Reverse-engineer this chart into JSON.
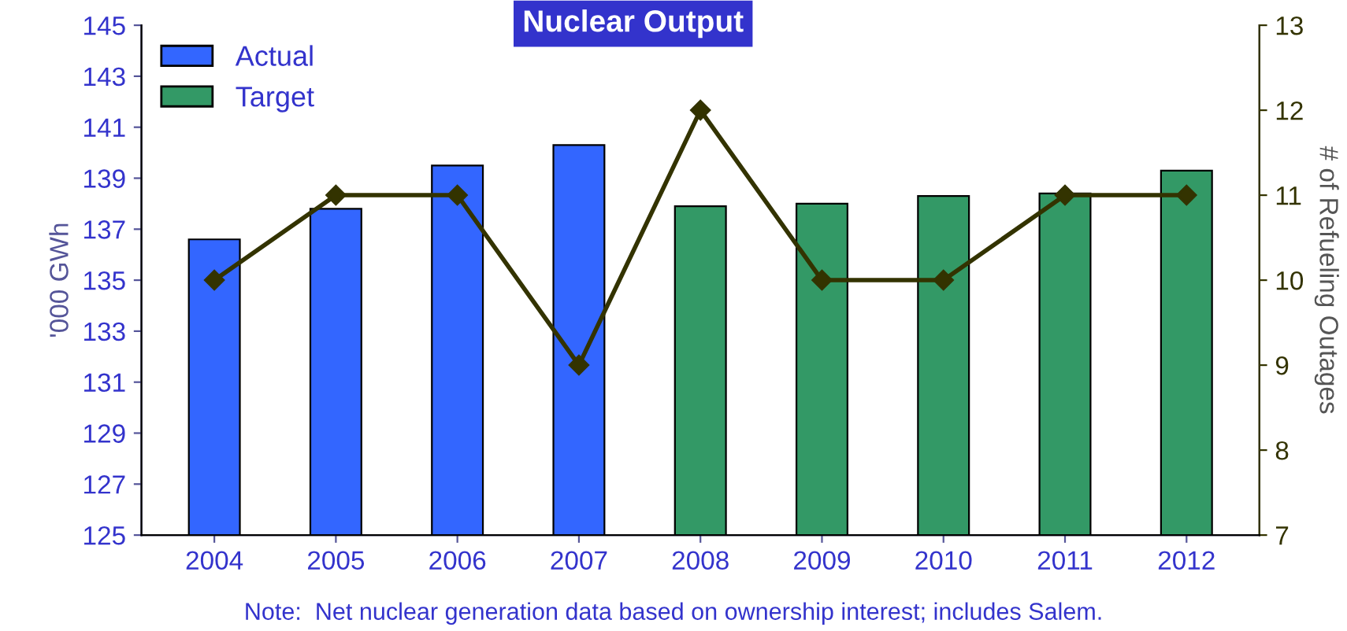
{
  "chart_data": {
    "type": "bar",
    "title": "Nuclear Output",
    "categories": [
      "2004",
      "2005",
      "2006",
      "2007",
      "2008",
      "2009",
      "2010",
      "2011",
      "2012"
    ],
    "series": [
      {
        "name": "Actual",
        "color": "#3366ff",
        "values": [
          136.6,
          137.8,
          139.5,
          140.3,
          null,
          null,
          null,
          null,
          null
        ]
      },
      {
        "name": "Target",
        "color": "#339966",
        "values": [
          null,
          null,
          null,
          null,
          137.9,
          138.0,
          138.3,
          138.4,
          139.3
        ]
      },
      {
        "type": "line",
        "axis": "y2",
        "color": "#333300",
        "marker": "diamond",
        "values": [
          10,
          11,
          11,
          9,
          12,
          10,
          10,
          11,
          11
        ]
      }
    ],
    "ylabel": "'000 GWh",
    "y2label": "# of Refueling Outages",
    "ylim": [
      125,
      145
    ],
    "yticks": [
      125,
      127,
      129,
      131,
      133,
      135,
      137,
      139,
      141,
      143,
      145
    ],
    "y2lim": [
      7,
      13
    ],
    "y2ticks": [
      7,
      8,
      9,
      10,
      11,
      12,
      13
    ],
    "legend": "top left",
    "grid": false,
    "annotations": [
      "Note:  Net nuclear generation data based on ownership interest; includes Salem."
    ]
  }
}
